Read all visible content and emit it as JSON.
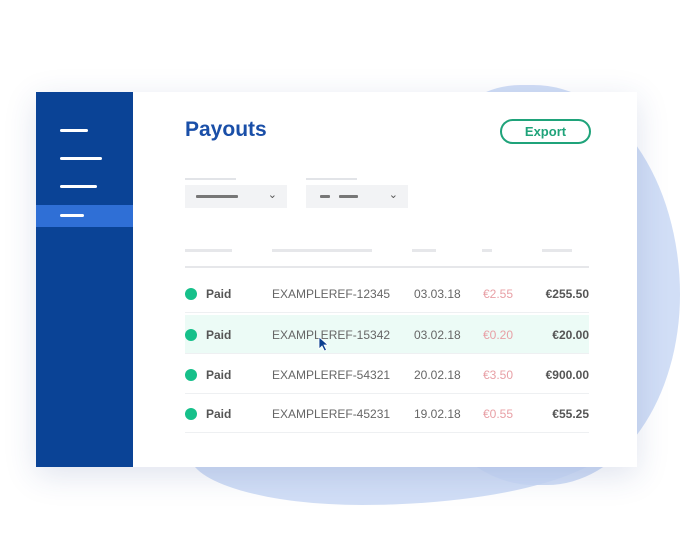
{
  "header": {
    "title": "Payouts",
    "export_label": "Export"
  },
  "colors": {
    "sidebar": "#0a4396",
    "accent": "#1fa37a",
    "status_paid": "#16c08a",
    "fee": "#e8a0a6",
    "title": "#1a4fa8"
  },
  "table": {
    "rows": [
      {
        "status": "Paid",
        "ref": "EXAMPLEREF-12345",
        "date": "03.03.18",
        "fee": "€2.55",
        "amount": "€255.50"
      },
      {
        "status": "Paid",
        "ref": "EXAMPLEREF-15342",
        "date": "03.02.18",
        "fee": "€0.20",
        "amount": "€20.00",
        "highlighted": true
      },
      {
        "status": "Paid",
        "ref": "EXAMPLEREF-54321",
        "date": "20.02.18",
        "fee": "€3.50",
        "amount": "€900.00"
      },
      {
        "status": "Paid",
        "ref": "EXAMPLEREF-45231",
        "date": "19.02.18",
        "fee": "€0.55",
        "amount": "€55.25"
      }
    ]
  }
}
